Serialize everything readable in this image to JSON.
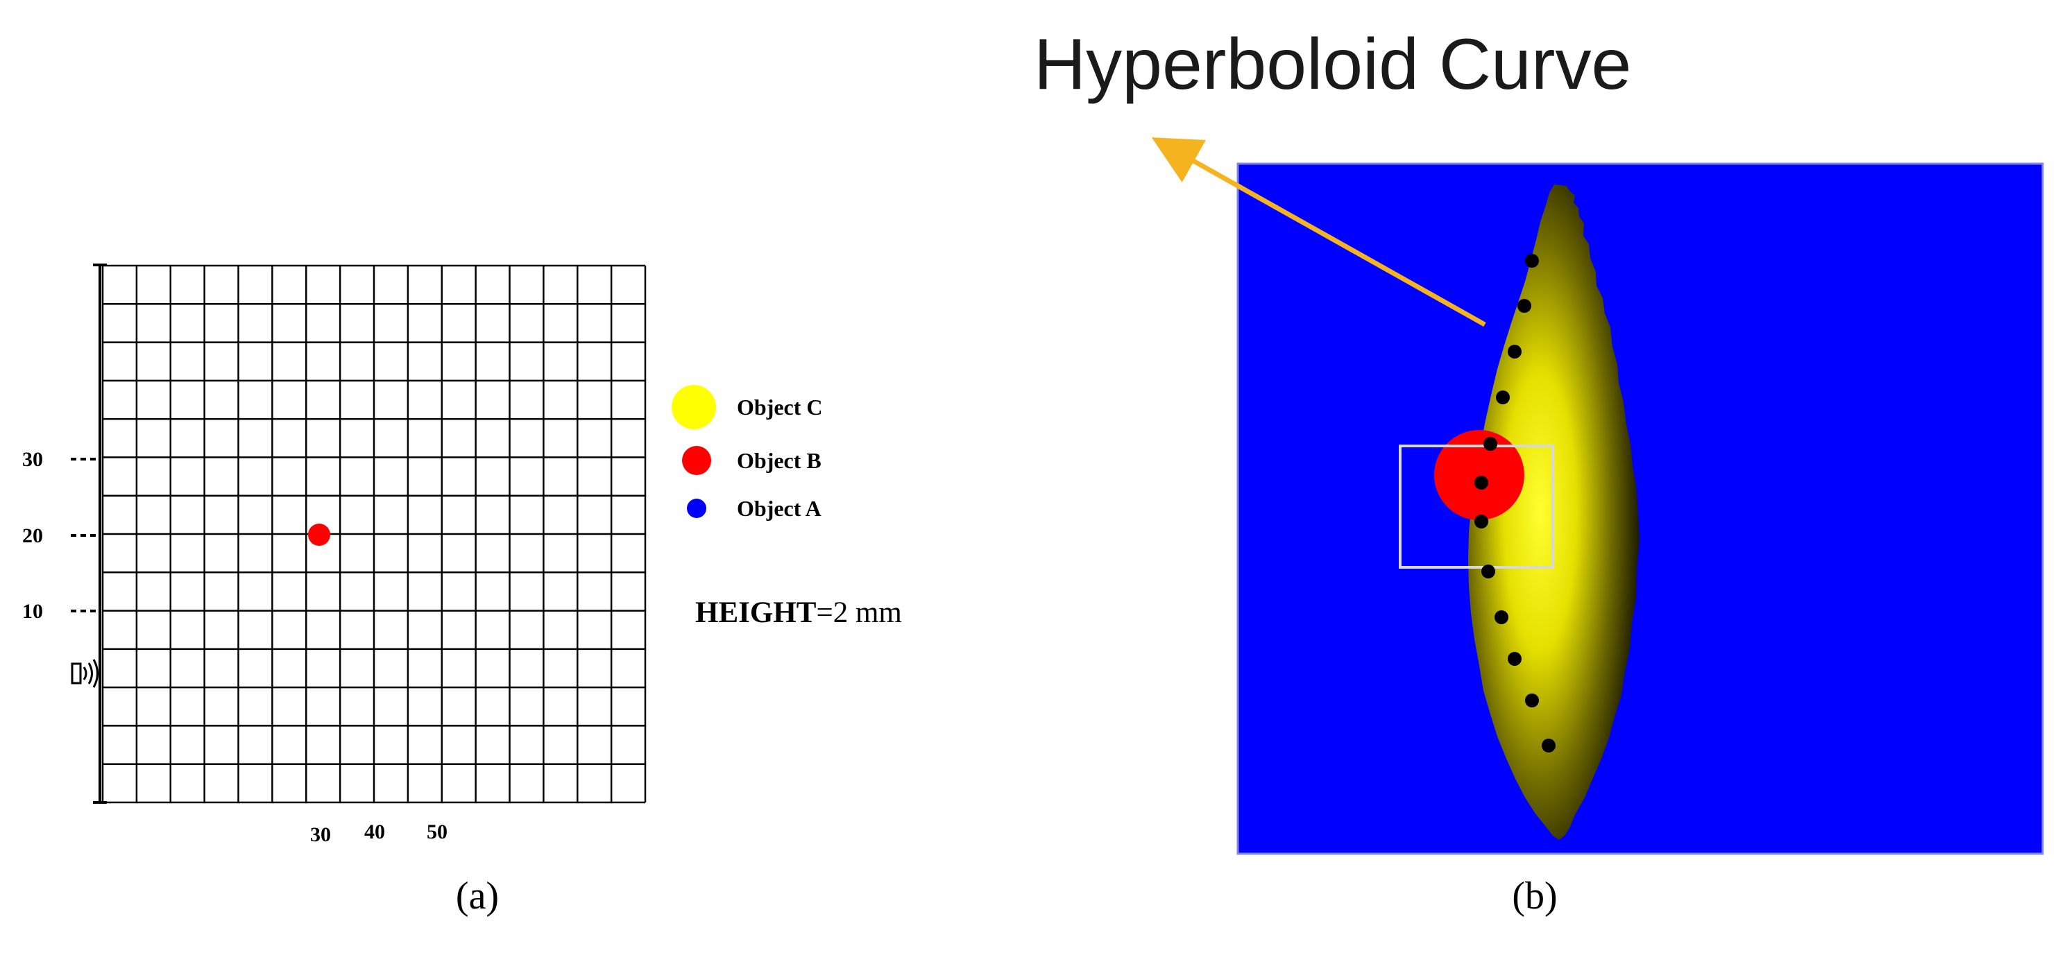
{
  "panel_a": {
    "y_ticks": [
      "30",
      "20",
      "10"
    ],
    "x_ticks": [
      "30",
      "40",
      "50"
    ],
    "legend": [
      {
        "label": "Object C",
        "color": "#ffff00"
      },
      {
        "label": "Object B",
        "color": "#ff0000"
      },
      {
        "label": "Object A",
        "color": "#0000ff"
      }
    ],
    "height_label": "HEIGHT",
    "height_value": "=2 mm",
    "sensor_icon": "radar-sensor-icon",
    "object_b_marker_color": "#ff0000",
    "caption": "(a)"
  },
  "panel_b": {
    "title": "Hyperboloid Curve",
    "background_color": "#0000ff",
    "curve_color": "#ffff00",
    "arrow_color": "#f5b320",
    "target_color": "#ff0000",
    "caption": "(b)"
  }
}
